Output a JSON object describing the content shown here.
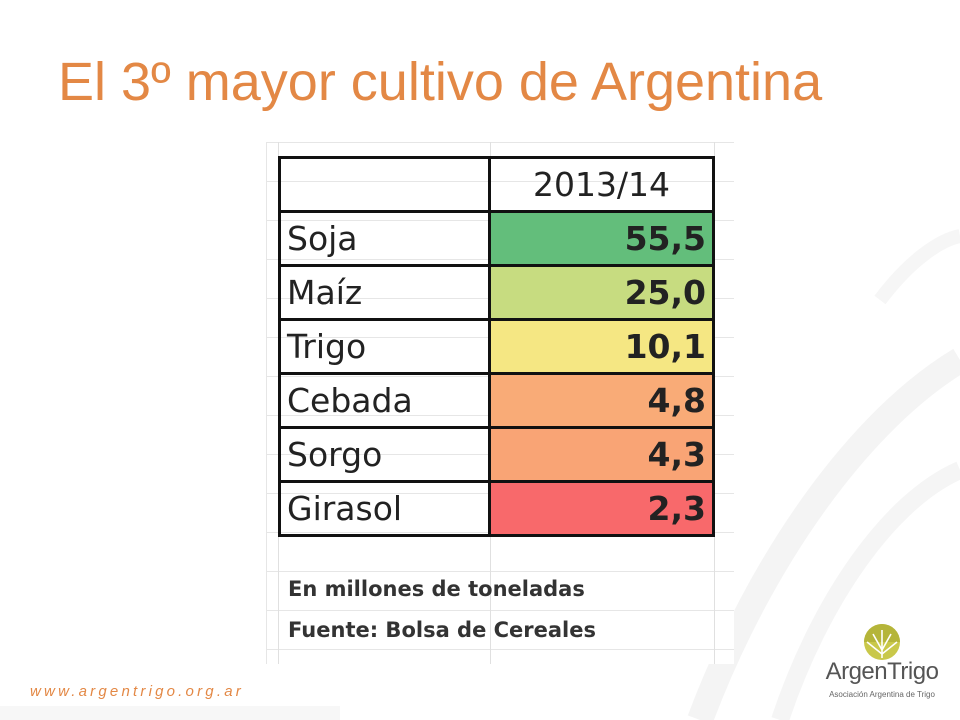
{
  "slide": {
    "title": "El 3º mayor cultivo de Argentina",
    "footer_url": "www.argentrigo.org.ar"
  },
  "table": {
    "header_label": "",
    "year": "2013/14",
    "rows": [
      {
        "crop": "Soja",
        "value": "55,5",
        "color": "#63be7b"
      },
      {
        "crop": "Maíz",
        "value": "25,0",
        "color": "#c7dc80"
      },
      {
        "crop": "Trigo",
        "value": "10,1",
        "color": "#f5e783"
      },
      {
        "crop": "Cebada",
        "value": "4,8",
        "color": "#f9ab77"
      },
      {
        "crop": "Sorgo",
        "value": "4,3",
        "color": "#f9a475"
      },
      {
        "crop": "Girasol",
        "value": "2,3",
        "color": "#f8696b"
      }
    ],
    "note_units": "En millones de toneladas",
    "note_source": "Fuente: Bolsa de Cereales"
  },
  "logo": {
    "name": "ArgenTrigo",
    "subtitle": "Asociación Argentina de Trigo",
    "icon": "wheat-sun-emblem-icon",
    "accent_color": "#b5b53a"
  },
  "colors": {
    "title": "#e38845",
    "grid_border": "#111111"
  }
}
